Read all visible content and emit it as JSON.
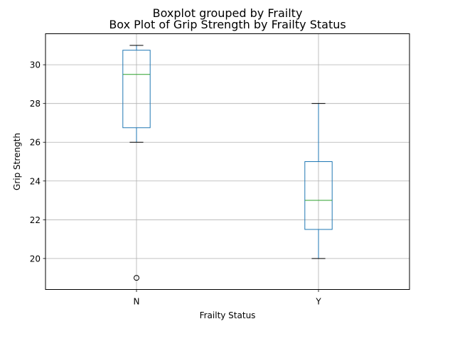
{
  "chart_data": {
    "type": "boxplot",
    "suptitle": "Boxplot grouped by Frailty",
    "title": "Box Plot of Grip Strength by Frailty Status",
    "xlabel": "Frailty Status",
    "ylabel": "Grip Strength",
    "categories": [
      "N",
      "Y"
    ],
    "ylim": [
      18.4,
      31.6
    ],
    "yticks": [
      20,
      22,
      24,
      26,
      28,
      30
    ],
    "grid": true,
    "boxes": [
      {
        "category": "N",
        "whisker_low": 26,
        "q1": 26.75,
        "median": 29.5,
        "q3": 30.75,
        "whisker_high": 31,
        "outliers": [
          19
        ]
      },
      {
        "category": "Y",
        "whisker_low": 20,
        "q1": 21.5,
        "median": 23,
        "q3": 25,
        "whisker_high": 28,
        "outliers": []
      }
    ],
    "colors": {
      "box": "#1f77b4",
      "median": "#2ca02c",
      "whisker": "#1f77b4",
      "grid": "#b0b0b0",
      "outlier": "#000000"
    }
  }
}
